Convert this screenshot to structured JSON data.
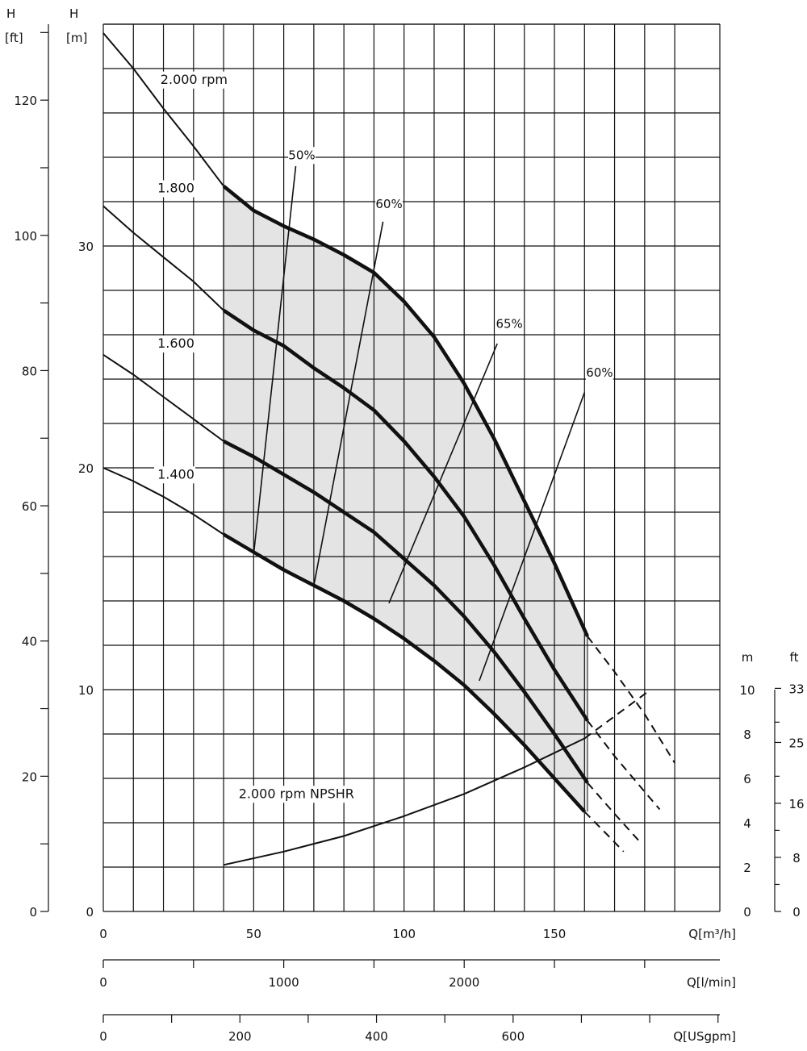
{
  "chart_data": {
    "type": "line",
    "axes": {
      "left_ft": {
        "title_top": "H",
        "title_unit": "[ft]",
        "ticks": [
          0,
          20,
          40,
          60,
          80,
          100,
          120
        ]
      },
      "left_m": {
        "title_top": "H",
        "title_unit": "[m]",
        "ticks": [
          0,
          10,
          20,
          30
        ],
        "range": [
          0,
          40
        ]
      },
      "x_flow_m3h": {
        "label": "Q[m³/h]",
        "ticks": [
          0,
          50,
          100,
          150
        ],
        "range": [
          0,
          205
        ]
      },
      "x_flow_lmin": {
        "label": "Q[l/min]",
        "ticks": [
          0,
          1000,
          2000
        ]
      },
      "x_flow_usgpm": {
        "label": "Q[USgpm]",
        "ticks": [
          0,
          200,
          400,
          600
        ]
      },
      "npshr_m": {
        "title": "m",
        "ticks": [
          0,
          2,
          4,
          6,
          8,
          10
        ]
      },
      "npshr_ft": {
        "title": "ft",
        "ticks": [
          0,
          8,
          16,
          25,
          33
        ]
      }
    },
    "grid": true,
    "series": [
      {
        "name": "2.000 rpm",
        "label": "2.000 rpm",
        "points": [
          [
            0,
            39.6
          ],
          [
            10,
            38.0
          ],
          [
            20,
            36.2
          ],
          [
            30,
            34.5
          ],
          [
            40,
            32.7
          ],
          [
            50,
            31.6
          ],
          [
            60,
            30.9
          ],
          [
            70,
            30.3
          ],
          [
            80,
            29.6
          ],
          [
            90,
            28.8
          ],
          [
            100,
            27.5
          ],
          [
            110,
            25.9
          ],
          [
            120,
            23.8
          ],
          [
            130,
            21.3
          ],
          [
            140,
            18.5
          ],
          [
            150,
            15.7
          ],
          [
            161,
            12.4
          ]
        ],
        "dashed_extension": [
          [
            161,
            12.4
          ],
          [
            170,
            10.8
          ],
          [
            180,
            8.9
          ],
          [
            190,
            6.7
          ]
        ]
      },
      {
        "name": "1.800",
        "label": "1.800",
        "points": [
          [
            0,
            31.8
          ],
          [
            10,
            30.6
          ],
          [
            20,
            29.5
          ],
          [
            30,
            28.4
          ],
          [
            40,
            27.1
          ],
          [
            50,
            26.2
          ],
          [
            60,
            25.5
          ],
          [
            70,
            24.5
          ],
          [
            80,
            23.6
          ],
          [
            90,
            22.6
          ],
          [
            100,
            21.2
          ],
          [
            110,
            19.6
          ],
          [
            120,
            17.8
          ],
          [
            130,
            15.6
          ],
          [
            140,
            13.2
          ],
          [
            150,
            10.9
          ],
          [
            161,
            8.6
          ]
        ],
        "dashed_extension": [
          [
            161,
            8.6
          ],
          [
            170,
            7.0
          ],
          [
            180,
            5.4
          ],
          [
            185,
            4.6
          ]
        ]
      },
      {
        "name": "1.600",
        "label": "1.600",
        "points": [
          [
            0,
            25.1
          ],
          [
            10,
            24.2
          ],
          [
            20,
            23.2
          ],
          [
            30,
            22.2
          ],
          [
            40,
            21.2
          ],
          [
            50,
            20.5
          ],
          [
            60,
            19.7
          ],
          [
            70,
            18.9
          ],
          [
            80,
            18.0
          ],
          [
            90,
            17.1
          ],
          [
            100,
            15.9
          ],
          [
            110,
            14.7
          ],
          [
            120,
            13.3
          ],
          [
            130,
            11.7
          ],
          [
            140,
            9.9
          ],
          [
            150,
            8.0
          ],
          [
            161,
            5.8
          ]
        ],
        "dashed_extension": [
          [
            161,
            5.8
          ],
          [
            170,
            4.4
          ],
          [
            178,
            3.2
          ]
        ]
      },
      {
        "name": "1.400",
        "label": "1.400",
        "points": [
          [
            0,
            20.0
          ],
          [
            10,
            19.4
          ],
          [
            20,
            18.7
          ],
          [
            30,
            17.9
          ],
          [
            40,
            17.0
          ],
          [
            50,
            16.2
          ],
          [
            60,
            15.4
          ],
          [
            70,
            14.7
          ],
          [
            80,
            14.0
          ],
          [
            90,
            13.2
          ],
          [
            100,
            12.3
          ],
          [
            110,
            11.3
          ],
          [
            120,
            10.2
          ],
          [
            130,
            8.9
          ],
          [
            140,
            7.5
          ],
          [
            150,
            6.0
          ],
          [
            160,
            4.5
          ]
        ],
        "dashed_extension": [
          [
            160,
            4.5
          ],
          [
            168,
            3.4
          ],
          [
            173,
            2.7
          ]
        ]
      },
      {
        "name": "2.000 rpm NPSHR",
        "label": "2.000 rpm NPSHR",
        "points": [
          [
            40,
            2.1
          ],
          [
            60,
            2.7
          ],
          [
            80,
            3.4
          ],
          [
            100,
            4.3
          ],
          [
            120,
            5.3
          ],
          [
            140,
            6.5
          ],
          [
            160,
            7.8
          ]
        ],
        "dashed_extension": [
          [
            160,
            7.8
          ],
          [
            170,
            8.8
          ],
          [
            182,
            10.0
          ]
        ]
      }
    ],
    "efficiency_lines": [
      {
        "label": "50%",
        "points": [
          [
            50,
            16.1
          ],
          [
            64,
            33.6
          ]
        ]
      },
      {
        "label": "60%",
        "points": [
          [
            70,
            14.7
          ],
          [
            93,
            31.1
          ]
        ]
      },
      {
        "label": "65%",
        "points": [
          [
            95,
            13.9
          ],
          [
            131,
            25.6
          ]
        ]
      },
      {
        "label": "60%",
        "points": [
          [
            125,
            10.4
          ],
          [
            160,
            23.4
          ]
        ]
      }
    ],
    "annotations": [
      {
        "text": "50%"
      },
      {
        "text": "60%"
      },
      {
        "text": "65%"
      },
      {
        "text": "60%"
      }
    ]
  }
}
